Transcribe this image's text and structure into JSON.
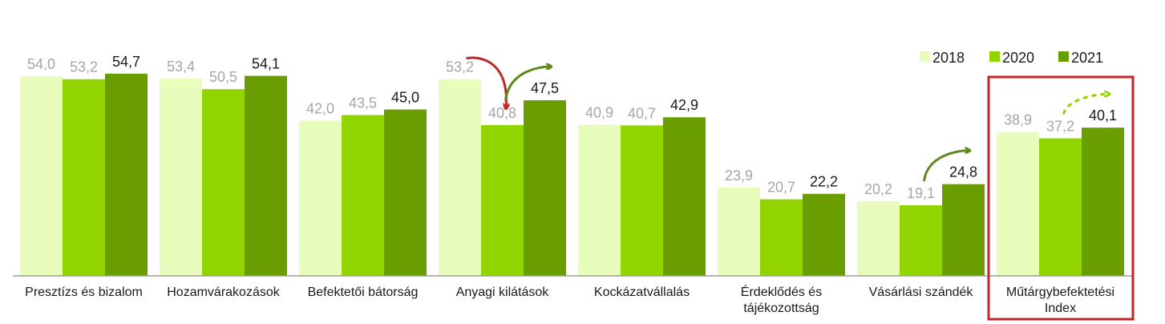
{
  "chart_data": {
    "type": "bar",
    "title": "",
    "xlabel": "",
    "ylabel": "",
    "ylim": [
      0,
      60
    ],
    "grid": false,
    "legend": "top-right",
    "categories": [
      "Presztízs és bizalom",
      "Hozamvárakozások",
      "Befektetői bátorság",
      "Anyagi kilátások",
      "Kockázatvállalás",
      "Érdeklődés és tájékozottság",
      "Vásárlási szándék",
      "Műtárgybefektetési Index"
    ],
    "category_lines": [
      [
        "Presztízs és bizalom"
      ],
      [
        "Hozamvárakozások"
      ],
      [
        "Befektetői bátorság"
      ],
      [
        "Anyagi kilátások"
      ],
      [
        "Kockázatvállalás"
      ],
      [
        "Érdeklődés és",
        "tájékozottság"
      ],
      [
        "Vásárlási szándék"
      ],
      [
        "Műtárgybefektetési",
        "Index"
      ]
    ],
    "series": [
      {
        "name": "2018",
        "color": "#e8fcbc",
        "label_color": "#a6a6a6",
        "values": [
          54.0,
          53.4,
          42.0,
          53.2,
          40.9,
          23.9,
          20.2,
          38.9
        ],
        "labels": [
          "54,0",
          "53,4",
          "42,0",
          "53,2",
          "40,9",
          "23,9",
          "20,2",
          "38,9"
        ]
      },
      {
        "name": "2020",
        "color": "#92d400",
        "label_color": "#a6a6a6",
        "values": [
          53.2,
          50.5,
          43.5,
          40.8,
          40.7,
          20.7,
          19.1,
          37.2
        ],
        "labels": [
          "53,2",
          "50,5",
          "43,5",
          "40,8",
          "40,7",
          "20,7",
          "19,1",
          "37,2"
        ]
      },
      {
        "name": "2021",
        "color": "#6a9e00",
        "label_color": "#1a1a1a",
        "values": [
          54.7,
          54.1,
          45.0,
          47.5,
          42.9,
          22.2,
          24.8,
          40.1
        ],
        "labels": [
          "54,7",
          "54,1",
          "45,0",
          "47,5",
          "42,9",
          "22,2",
          "24,8",
          "40,1"
        ]
      }
    ],
    "annotations": {
      "highlight_category": "Műtárgybefektetési Index",
      "highlight_color": "#c0272d",
      "arrows": [
        {
          "category": "Anyagi kilátások",
          "from": "2018",
          "to": "2020",
          "direction": "down",
          "color": "#c0272d",
          "style": "solid"
        },
        {
          "category": "Anyagi kilátások",
          "from": "2020",
          "to": "2021",
          "direction": "up",
          "color": "#5c8a1e",
          "style": "solid"
        },
        {
          "category": "Vásárlási szándék",
          "from": "2020",
          "to": "2021",
          "direction": "up",
          "color": "#5c8a1e",
          "style": "solid"
        },
        {
          "category": "Műtárgybefektetési Index",
          "from": "2020",
          "to": "2021",
          "direction": "up",
          "color": "#92d400",
          "style": "dashed"
        }
      ]
    }
  }
}
